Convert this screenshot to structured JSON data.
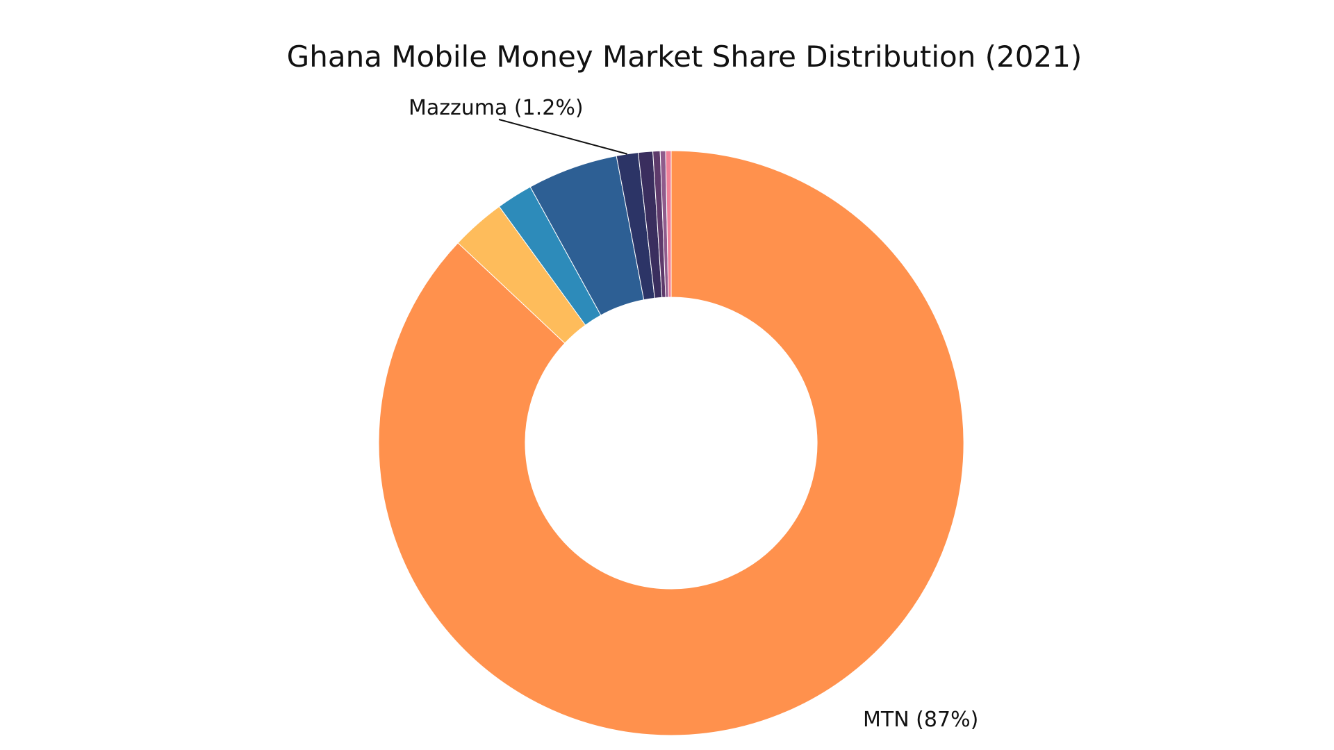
{
  "chart_data": {
    "type": "pie",
    "title": "Ghana Mobile Money Market Share Distribution (2021)",
    "donut": true,
    "start_angle_deg": 0,
    "direction": "clockwise",
    "slices": [
      {
        "name": "MTN",
        "value": 87.0,
        "color": "#FF914D",
        "label": "MTN (87%)",
        "label_side": "bottom-right"
      },
      {
        "name": "",
        "value": 3.0,
        "color": "#FEBC5B",
        "label": ""
      },
      {
        "name": "",
        "value": 2.0,
        "color": "#2D8BBA",
        "label": ""
      },
      {
        "name": "",
        "value": 5.0,
        "color": "#2D5F94",
        "label": ""
      },
      {
        "name": "Mazzuma",
        "value": 1.2,
        "color": "#2C3466",
        "label": "Mazzuma (1.2%)",
        "label_side": "top-left"
      },
      {
        "name": "",
        "value": 0.8,
        "color": "#3A2E5E",
        "label": ""
      },
      {
        "name": "",
        "value": 0.4,
        "color": "#5E3A6B",
        "label": ""
      },
      {
        "name": "",
        "value": 0.3,
        "color": "#8F5B8C",
        "label": ""
      },
      {
        "name": "",
        "value": 0.3,
        "color": "#F08098",
        "label": ""
      }
    ]
  }
}
